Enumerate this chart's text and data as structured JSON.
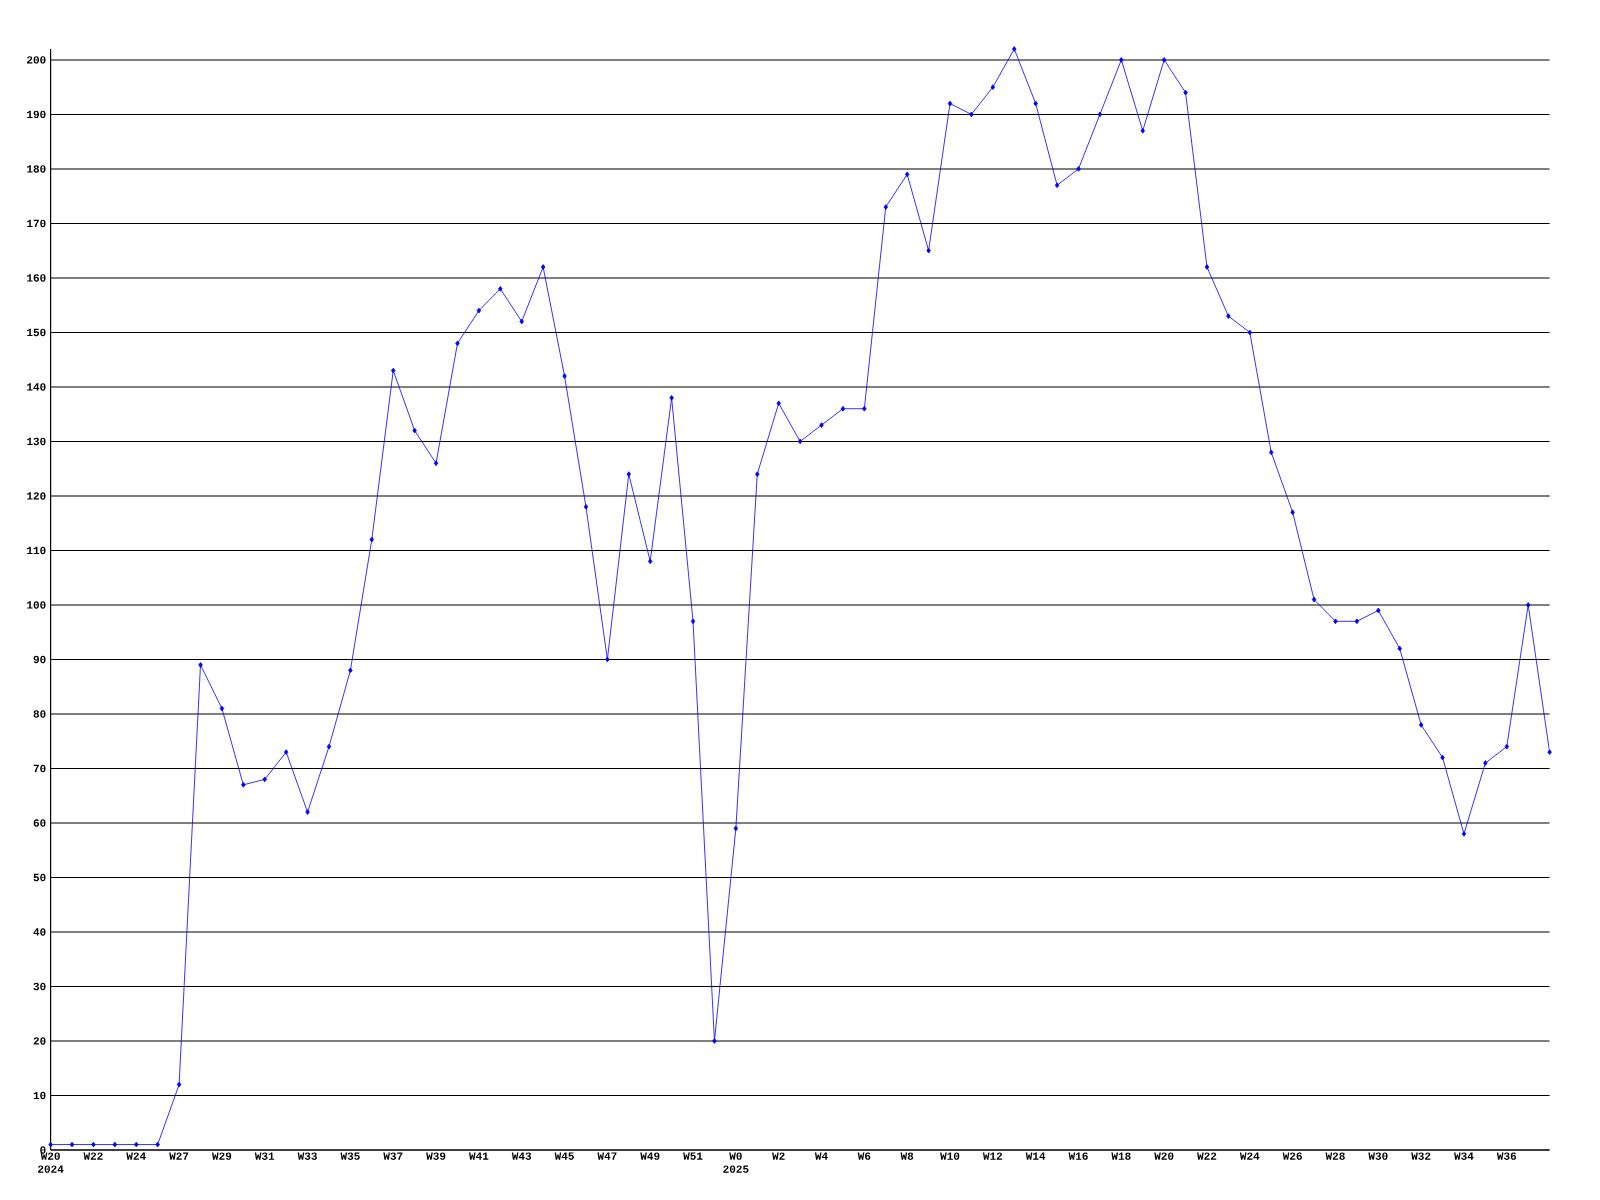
{
  "chart_data": {
    "type": "line",
    "categories": [
      "W20 2024",
      null,
      "W22",
      null,
      "W24",
      null,
      "W27",
      null,
      "W29",
      null,
      "W31",
      null,
      "W33",
      null,
      "W35",
      null,
      "W37",
      null,
      "W39",
      null,
      "W41",
      null,
      "W43",
      null,
      "W45",
      null,
      "W47",
      null,
      "W49",
      null,
      "W51",
      null,
      "W0 2025",
      null,
      "W2",
      null,
      "W4",
      null,
      "W6",
      null,
      "W8",
      null,
      "W10",
      null,
      "W12",
      null,
      "W14",
      null,
      "W16",
      null,
      "W18",
      null,
      "W20",
      null,
      "W22",
      null,
      "W24",
      null,
      "W26",
      null,
      "W28",
      null,
      "W30",
      null,
      "W32",
      null,
      "W34",
      null,
      "W36",
      null,
      null
    ],
    "series": [
      {
        "color": "#0000ff",
        "values": [
          1,
          1,
          1,
          1,
          1,
          1,
          12,
          89,
          81,
          67,
          68,
          73,
          62,
          74,
          88,
          112,
          143,
          132,
          126,
          148,
          154,
          158,
          152,
          162,
          142,
          118,
          90,
          124,
          108,
          138,
          97,
          20,
          59,
          124,
          137,
          130,
          133,
          136,
          136,
          173,
          179,
          165,
          192,
          190,
          195,
          202,
          192,
          177,
          180,
          190,
          200,
          187,
          200,
          194,
          162,
          153,
          150,
          128,
          117,
          101,
          97,
          97,
          99,
          92,
          78,
          72,
          58,
          71,
          74,
          100,
          73
        ]
      }
    ],
    "ylim": [
      0,
      202
    ],
    "yticks": [
      0,
      10,
      20,
      30,
      40,
      50,
      60,
      70,
      80,
      90,
      100,
      110,
      120,
      130,
      140,
      150,
      160,
      170,
      180,
      190,
      200
    ],
    "grid": "y",
    "marker": "diamond",
    "line_style": "solid"
  }
}
